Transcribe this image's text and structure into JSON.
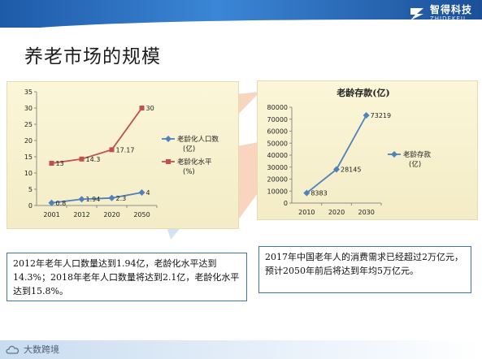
{
  "brand": {
    "name_cn": "智得科技",
    "name_en": "ZHIDEKEJI",
    "logo_icon": "zhideke-logo-icon",
    "color": "#2a66b8"
  },
  "page": {
    "title": "养老市场的规模"
  },
  "footer": {
    "text": "大数跨境",
    "logo_icon": "cloud-logo-icon"
  },
  "colors": {
    "series_blue": "#4f81bd",
    "series_red": "#c0504d",
    "panel_bg": "#f7f1d2",
    "note_border": "#3e74b4"
  },
  "chart_data": [
    {
      "type": "line",
      "title": "",
      "categories": [
        "2001",
        "2012",
        "2020",
        "2050"
      ],
      "ylim": [
        0,
        35
      ],
      "yticks": [
        "0",
        "5",
        "10",
        "15",
        "20",
        "25",
        "30",
        "35"
      ],
      "grid": false,
      "legend_position": "right",
      "series": [
        {
          "name": "老龄化人口数(亿)",
          "legend_lines": [
            "老龄化人口数",
            "(亿)"
          ],
          "values": [
            0.8,
            1.94,
            2.3,
            4
          ],
          "labels": [
            "0.8",
            "1.94",
            "2.3",
            "4"
          ],
          "color": "#4f81bd",
          "marker": "diamond"
        },
        {
          "name": "老龄化水平(%)",
          "legend_lines": [
            "老龄化水平",
            "(%)"
          ],
          "values": [
            13,
            14.3,
            17.17,
            30
          ],
          "labels": [
            "13",
            "14.3",
            "17.17",
            "30"
          ],
          "color": "#c0504d",
          "marker": "square"
        }
      ]
    },
    {
      "type": "line",
      "title": "老龄存款(亿)",
      "categories": [
        "2010",
        "2020",
        "2030"
      ],
      "ylim": [
        0,
        80000
      ],
      "yticks": [
        "0",
        "10000",
        "20000",
        "30000",
        "40000",
        "50000",
        "60000",
        "70000",
        "80000"
      ],
      "grid": false,
      "legend_position": "right",
      "series": [
        {
          "name": "老龄存款(亿)",
          "legend_lines": [
            "老龄存款",
            "(亿)"
          ],
          "values": [
            8383,
            28145,
            73219
          ],
          "labels": [
            "8383",
            "28145",
            "73219"
          ],
          "color": "#4f81bd",
          "marker": "diamond"
        }
      ]
    }
  ],
  "notes": {
    "left": "2012年老年人口数量达到1.94亿，老龄化水平达到14.3%；2018年老年人口数量将达到2.1亿，老龄化水平达到15.8%。",
    "right": "2017年中国老年人的消费需求已经超过2万亿元，预计2050年前后将达到年均5万亿元。"
  }
}
